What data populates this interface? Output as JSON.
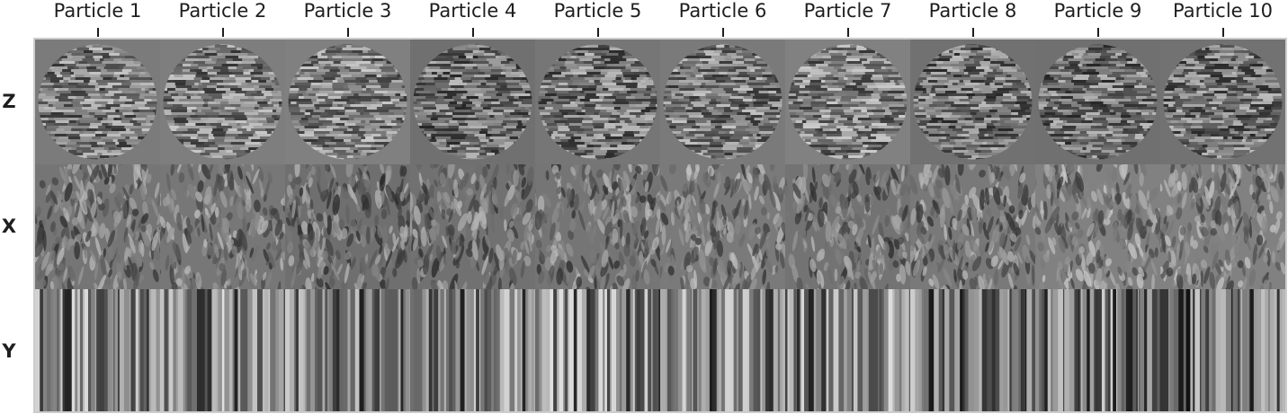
{
  "columns": [
    {
      "label": "Particle 1"
    },
    {
      "label": "Particle 2"
    },
    {
      "label": "Particle 3"
    },
    {
      "label": "Particle 4"
    },
    {
      "label": "Particle 5"
    },
    {
      "label": "Particle 6"
    },
    {
      "label": "Particle 7"
    },
    {
      "label": "Particle 8"
    },
    {
      "label": "Particle 9"
    },
    {
      "label": "Particle 10"
    }
  ],
  "rows": [
    {
      "label": "Z",
      "view": "horizontal-stripes-disc"
    },
    {
      "label": "X",
      "view": "textured-noise"
    },
    {
      "label": "Y",
      "view": "vertical-streaks"
    }
  ],
  "colors": {
    "background_gray": "#808080",
    "frame": "#cccccc",
    "text": "#1e1e1e"
  }
}
